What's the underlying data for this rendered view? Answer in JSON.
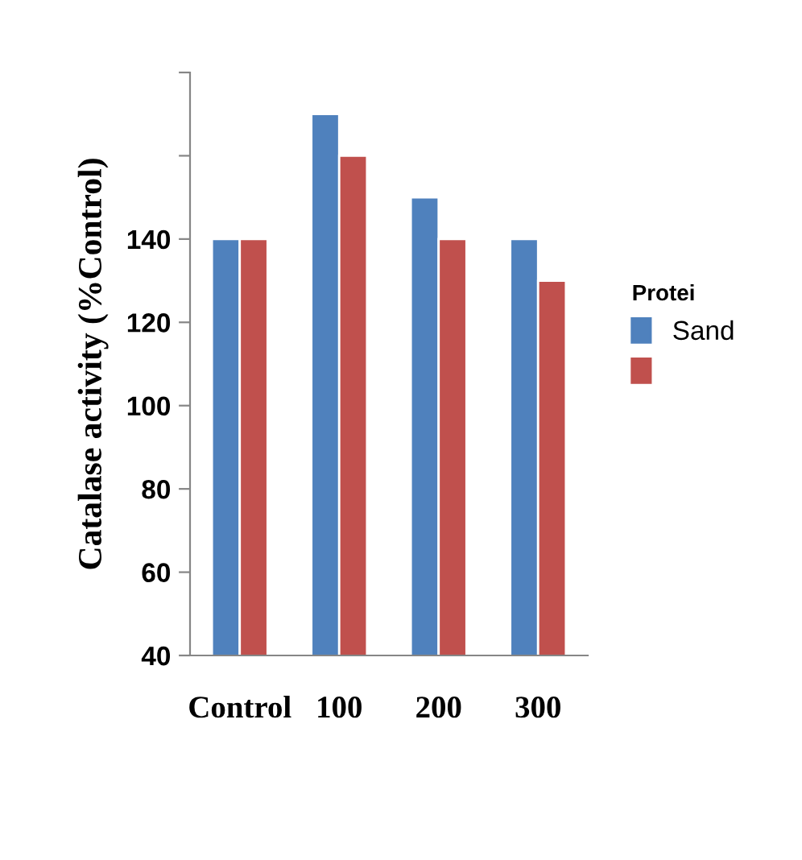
{
  "chart_data": {
    "type": "bar",
    "ylabel": "Catalase activity (%Control)",
    "legend_title": "Protei",
    "categories": [
      "Control",
      "100",
      "200",
      "300"
    ],
    "series": [
      {
        "name": "Sand",
        "color": "#4f81bd",
        "values": [
          140,
          170,
          150,
          140
        ]
      },
      {
        "color": "#c0504d",
        "values": [
          140,
          160,
          140,
          130
        ]
      }
    ],
    "ylim": [
      40,
      180
    ],
    "yticks": [
      40,
      60,
      80,
      100,
      120,
      140,
      {
        "value": 160,
        "label": null
      },
      {
        "value": 180,
        "label": null
      }
    ],
    "grid": false,
    "legend": "right"
  }
}
